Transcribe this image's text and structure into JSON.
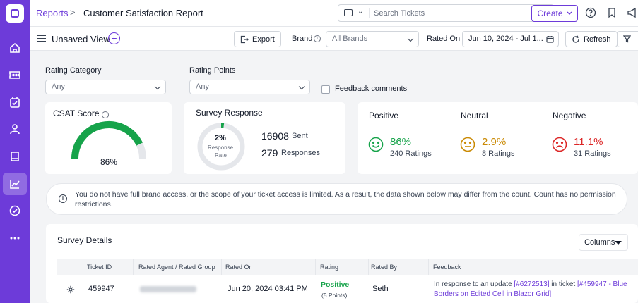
{
  "colors": {
    "brand": "#6d3bd9",
    "positive": "#16a34a",
    "neutral": "#ca8a04",
    "negative": "#dc2626"
  },
  "sidebar": {
    "icons": [
      "home-icon",
      "tickets-icon",
      "tasks-icon",
      "contacts-icon",
      "knowledge-base-icon",
      "reports-icon",
      "approvals-icon",
      "more-icon"
    ],
    "active": "reports-icon"
  },
  "topbar": {
    "breadcrumb_link": "Reports",
    "breadcrumb_sep": ">",
    "title": "Customer Satisfaction Report",
    "search_placeholder": "Search Tickets",
    "create_label": "Create"
  },
  "toolbar": {
    "view_label": "Unsaved View",
    "add_view": "+",
    "export_label": "Export",
    "brand_label": "Brand",
    "brand_value": "All Brands",
    "rated_on_label": "Rated On",
    "rated_on_value": "Jun 10, 2024 - Jul 1...",
    "refresh_label": "Refresh"
  },
  "filters": {
    "rating_category_label": "Rating Category",
    "rating_category_value": "Any",
    "rating_points_label": "Rating Points",
    "rating_points_value": "Any",
    "feedback_comments_label": "Feedback comments",
    "feedback_comments_checked": false
  },
  "csat": {
    "title": "CSAT Score",
    "percent": 86,
    "value_label": "86%"
  },
  "survey_response": {
    "title": "Survey Response",
    "rate_label": "2%",
    "rate_value": 2,
    "rate_caption_1": "Response",
    "rate_caption_2": "Rate",
    "sent_count": "16908",
    "sent_label": "Sent",
    "responses_count": "279",
    "responses_label": "Responses"
  },
  "sentiment": [
    {
      "title": "Positive",
      "percent": "86%",
      "ratings": "240 Ratings",
      "face": "smile-icon"
    },
    {
      "title": "Neutral",
      "percent": "2.9%",
      "ratings": "8 Ratings",
      "face": "neutral-face-icon"
    },
    {
      "title": "Negative",
      "percent": "11.1%",
      "ratings": "31 Ratings",
      "face": "frown-icon"
    }
  ],
  "notice": {
    "text": "You do not have full brand access, or the scope of your ticket access is limited. As a result, the data shown below may differ from the count. Count has no permission restrictions."
  },
  "survey_details": {
    "title": "Survey Details",
    "columns_label": "Columns",
    "headers": [
      "Ticket ID",
      "Rated Agent / Rated Group",
      "Rated On",
      "Rating",
      "Rated By",
      "Feedback"
    ],
    "rows": [
      {
        "ticket_id": "459947",
        "rated_on": "Jun 20, 2024 03:41 PM",
        "rating": "Positive",
        "points": "(5 Points)",
        "rated_by": "Seth",
        "feedback_prefix": "In response to an update ",
        "feedback_update_link": "[#6272513]",
        "feedback_mid": " in ticket ",
        "feedback_ticket_link": "[#459947 - Blue Borders on Edited Cell in Blazor Grid]"
      }
    ]
  }
}
